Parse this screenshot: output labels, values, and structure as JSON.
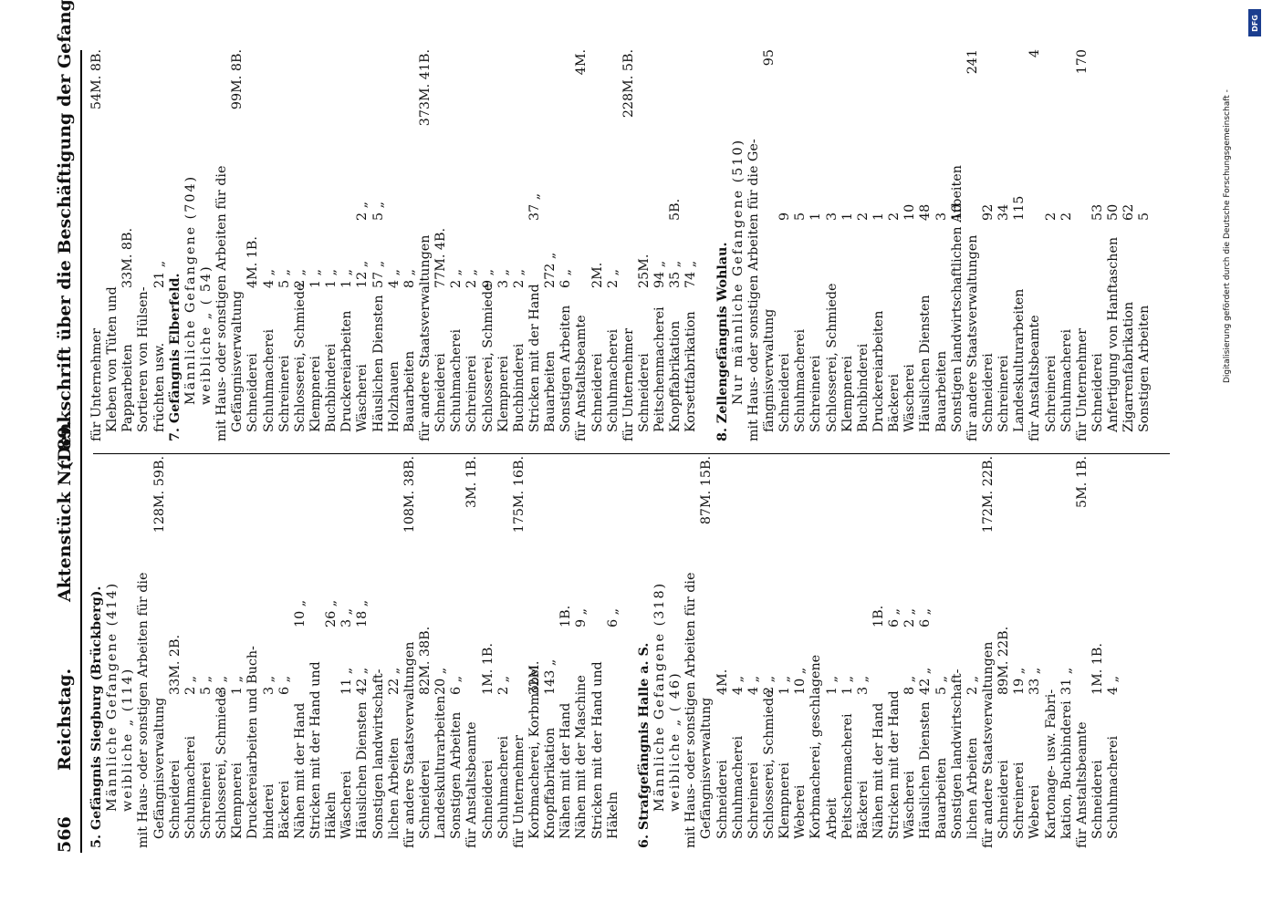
{
  "header": {
    "page_number": "566",
    "parliament": "Reichstag.",
    "document": "Aktenstück Nr. 89.",
    "title": "(Denkschrift über die Beschäftigung der Gefangenen.)"
  },
  "credit": {
    "text": "Digitalisierung gefördert durch die Deutsche Forschungsgemeinschaft -",
    "logo": "DFG"
  },
  "left_column": [
    {
      "kind": "head",
      "text": "5. Gefängnis Siegburg (Brückberg)."
    },
    {
      "kind": "spaced",
      "text": "Männliche Gefangene (414)"
    },
    {
      "kind": "spaced",
      "text": "weibliche    „    (114)"
    },
    {
      "text": "mit Haus- oder sonstigen Arbeiten für die"
    },
    {
      "text": "Gefängnisverwaltung",
      "v2": "",
      "tot": "128M. 59B."
    },
    {
      "text": "Schneiderei",
      "v1": "33M. 2B."
    },
    {
      "text": "Schuhmacherei",
      "v1": "2 „"
    },
    {
      "text": "Schreinerei",
      "v1": "5 „"
    },
    {
      "text": "Schlosserei, Schmiede",
      "v1": "3 „"
    },
    {
      "text": "Klempnerei",
      "v1": "1 „"
    },
    {
      "text": "Druckereiarbeiten und Buch-"
    },
    {
      "text": "binderei",
      "v1": "3 „"
    },
    {
      "text": "Bäckerei",
      "v1": "6 „"
    },
    {
      "text": "Nähen mit der Hand",
      "v2": "10 „"
    },
    {
      "text": "Stricken mit der Hand und"
    },
    {
      "text": "Häkeln",
      "v2": "26 „"
    },
    {
      "text": "Wäscherei",
      "v1": "11 „",
      "v2": "3 „"
    },
    {
      "text": "Häuslichen Diensten",
      "v1": "42 „",
      "v2": "18 „"
    },
    {
      "text": "Sonstigen landwirtschaft-"
    },
    {
      "text": "lichen Arbeiten",
      "v1": "22 „"
    },
    {
      "text": "für andere Staatsverwaltungen",
      "tot": "108M. 38B."
    },
    {
      "text": "Schneiderei",
      "v1": "82M. 38B."
    },
    {
      "text": "Landeskulturarbeiten",
      "v1": "20 „"
    },
    {
      "text": "Sonstigen Arbeiten",
      "v1": "6 „"
    },
    {
      "text": "für Anstaltsbeamte",
      "tot": "3M. 1B."
    },
    {
      "text": "Schneiderei",
      "v1": "1M. 1B."
    },
    {
      "text": "Schuhmacherei",
      "v1": "2 „"
    },
    {
      "text": "für Unternehmer",
      "tot": "175M. 16B."
    },
    {
      "text": "Korbmacherei, Korbmöbel",
      "v1": "32M."
    },
    {
      "text": "Knopffabrikation",
      "v1": "143 „"
    },
    {
      "text": "Nähen mit der Hand",
      "v2": "1B."
    },
    {
      "text": "Nähen mit der Maschine",
      "v2": "9 „"
    },
    {
      "text": "Stricken mit der Hand und"
    },
    {
      "text": "Häkeln",
      "v2": "6 „"
    },
    {
      "kind": "blank",
      "text": ""
    },
    {
      "kind": "head",
      "text": "6. Strafgefängnis Halle a. S."
    },
    {
      "kind": "spaced",
      "text": "Männliche Gefangene (318)"
    },
    {
      "kind": "spaced",
      "text": "weibliche    „    ( 46)"
    },
    {
      "text": "mit Haus- oder sonstigen Arbeiten für die"
    },
    {
      "text": "Gefängnisverwaltung",
      "tot": "87M. 15B."
    },
    {
      "text": "Schneiderei",
      "v1": "4M."
    },
    {
      "text": "Schuhmacherei",
      "v1": "4 „"
    },
    {
      "text": "Schreinerei",
      "v1": "4 „"
    },
    {
      "text": "Schlosserei, Schmiede",
      "v1": "2 „"
    },
    {
      "text": "Klempnerei",
      "v1": "1 „"
    },
    {
      "text": "Weberei",
      "v1": "10 „"
    },
    {
      "text": "Korbmacherei, geschlagene"
    },
    {
      "text": "Arbeit",
      "v1": "1 „"
    },
    {
      "text": "Peitschenmacherei",
      "v1": "1 „"
    },
    {
      "text": "Bäckerei",
      "v1": "3 „"
    },
    {
      "text": "Nähen mit der Hand",
      "v2": "1B."
    },
    {
      "text": "Stricken mit der Hand",
      "v2": "6 „"
    },
    {
      "text": "Wäscherei",
      "v1": "8 „",
      "v2": "2 „"
    },
    {
      "text": "Häuslichen Diensten",
      "v1": "42 „",
      "v2": "6 „"
    },
    {
      "text": "Bauarbeiten",
      "v1": "5 „"
    },
    {
      "text": "Sonstigen landwirtschaft-"
    },
    {
      "text": "lichen Arbeiten",
      "v1": "2 „"
    },
    {
      "text": "für andere Staatsverwaltungen",
      "tot": "172M. 22B."
    },
    {
      "text": "Schneiderei",
      "v1": "89M. 22B."
    },
    {
      "text": "Schreinerei",
      "v1": "19 „"
    },
    {
      "text": "Weberei",
      "v1": "33 „"
    },
    {
      "text": "Kartonage- usw. Fabri-"
    },
    {
      "text": "kation, Buchbinderei",
      "v1": "31 „"
    },
    {
      "text": "für Anstaltsbeamte",
      "tot": "5M. 1B."
    },
    {
      "text": "Schneiderei",
      "v1": "1M. 1B."
    },
    {
      "text": "Schuhmacherei",
      "v1": "4 „"
    }
  ],
  "right_column": [
    {
      "text": "für Unternehmer",
      "tot": "54M. 8B."
    },
    {
      "text": "Kleben von Tüten und"
    },
    {
      "text": "Papparbeiten",
      "v1": "33M. 8B."
    },
    {
      "text": "Sortieren von Hülsen-"
    },
    {
      "text": "früchten usw.",
      "v1": "21 „"
    },
    {
      "kind": "head",
      "text": "7. Gefängnis Elberfeld."
    },
    {
      "kind": "spaced",
      "text": "Männliche Gefangene (704)"
    },
    {
      "kind": "spaced",
      "text": "weibliche    „    ( 54)"
    },
    {
      "text": "mit Haus- oder sonstigen Arbeiten für die"
    },
    {
      "text": "Gefängnisverwaltung",
      "tot": "99M. 8B."
    },
    {
      "text": "Schneiderei",
      "v1": "4M. 1B."
    },
    {
      "text": "Schuhmacherei",
      "v1": "4 „"
    },
    {
      "text": "Schreinerei",
      "v1": "5 „"
    },
    {
      "text": "Schlosserei, Schmiede",
      "v1": "2 „"
    },
    {
      "text": "Klempnerei",
      "v1": "1 „"
    },
    {
      "text": "Buchbinderei",
      "v1": "1 „"
    },
    {
      "text": "Druckereiarbeiten",
      "v1": "1 „"
    },
    {
      "text": "Wäscherei",
      "v1": "12 „",
      "v2": "2 „"
    },
    {
      "text": "Häuslichen Diensten",
      "v1": "57 „",
      "v2": "5 „"
    },
    {
      "text": "Holzhauen",
      "v1": "4 „"
    },
    {
      "text": "Bauarbeiten",
      "v1": "8 „"
    },
    {
      "text": "für andere Staatsverwaltungen",
      "tot": "373M. 41B."
    },
    {
      "text": "Schneiderei",
      "v1": "77M. 4B."
    },
    {
      "text": "Schuhmacherei",
      "v1": "2 „"
    },
    {
      "text": "Schreinerei",
      "v1": "2 „"
    },
    {
      "text": "Schlosserei, Schmiede",
      "v1": "9 „"
    },
    {
      "text": "Klempnerei",
      "v1": "3 „"
    },
    {
      "text": "Buchbinderei",
      "v1": "2 „"
    },
    {
      "text": "Stricken mit der Hand",
      "v2": "37 „"
    },
    {
      "text": "Bauarbeiten",
      "v1": "272 „"
    },
    {
      "text": "Sonstigen Arbeiten",
      "v1": "6 „"
    },
    {
      "text": "für Anstaltsbeamte",
      "tot": "4M."
    },
    {
      "text": "Schneiderei",
      "v1": "2M."
    },
    {
      "text": "Schuhmacherei",
      "v1": "2 „"
    },
    {
      "text": "für Unternehmer",
      "tot": "228M. 5B."
    },
    {
      "text": "Schneiderei",
      "v1": "25M."
    },
    {
      "text": "Peitschenmacherei",
      "v1": "94 „"
    },
    {
      "text": "Knopffabrikation",
      "v1": "35 „",
      "v2": "5B."
    },
    {
      "text": "Korsettfabrikation",
      "v1": "74 „"
    },
    {
      "kind": "blank",
      "text": ""
    },
    {
      "kind": "head",
      "text": "8. Zellengefängnis Wohlau."
    },
    {
      "kind": "spaced",
      "text": "Nur männliche Gefangene (510)"
    },
    {
      "text": "mit Haus- oder sonstigen Arbeiten für die Ge-"
    },
    {
      "text": "fängnisverwaltung",
      "tot": "95"
    },
    {
      "text": "Schneiderei",
      "v2": "9"
    },
    {
      "text": "Schuhmacherei",
      "v2": "5"
    },
    {
      "text": "Schreinerei",
      "v2": "1"
    },
    {
      "text": "Schlosserei, Schmiede",
      "v2": "3"
    },
    {
      "text": "Klempnerei",
      "v2": "1"
    },
    {
      "text": "Buchbinderei",
      "v2": "2"
    },
    {
      "text": "Druckereiarbeiten",
      "v2": "1"
    },
    {
      "text": "Bäckerei",
      "v2": "2"
    },
    {
      "text": "Wäscherei",
      "v2": "10"
    },
    {
      "text": "Häuslichen Diensten",
      "v2": "48"
    },
    {
      "text": "Bauarbeiten",
      "v2": "3"
    },
    {
      "text": "Sonstigen landwirtschaftlichen Arbeiten",
      "v2": "10"
    },
    {
      "text": "für andere Staatsverwaltungen",
      "tot": "241"
    },
    {
      "text": "Schneiderei",
      "v2": "92"
    },
    {
      "text": "Schreinerei",
      "v2": "34"
    },
    {
      "text": "Landeskulturarbeiten",
      "v2": "115"
    },
    {
      "text": "für Anstaltsbeamte",
      "tot": "4"
    },
    {
      "text": "Schreinerei",
      "v2": "2"
    },
    {
      "text": "Schuhmacherei",
      "v2": "2"
    },
    {
      "text": "für Unternehmer",
      "tot": "170"
    },
    {
      "text": "Schneiderei",
      "v2": "53"
    },
    {
      "text": "Anfertigung von Hanftaschen",
      "v2": "50"
    },
    {
      "text": "Zigarrenfabrikation",
      "v2": "62"
    },
    {
      "text": "Sonstigen Arbeiten",
      "v2": "5"
    }
  ]
}
